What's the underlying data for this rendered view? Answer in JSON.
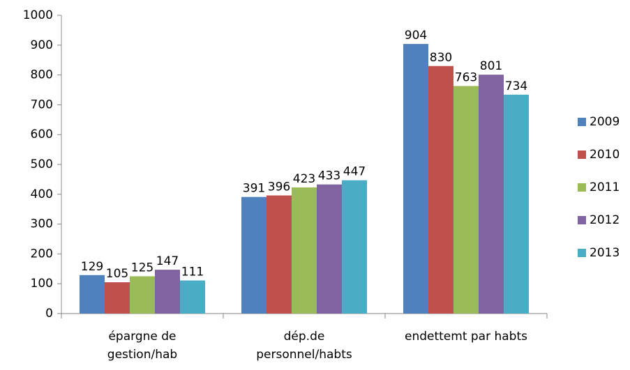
{
  "chart_data": {
    "type": "bar",
    "categories": [
      "épargne de gestion/hab",
      "dép.de personnel/habts",
      "endettemt par habts"
    ],
    "series": [
      {
        "name": "2009",
        "color": "#4f81bd",
        "values": [
          129,
          391,
          904
        ]
      },
      {
        "name": "2010",
        "color": "#c0504d",
        "values": [
          105,
          396,
          830
        ]
      },
      {
        "name": "2011",
        "color": "#9bbb59",
        "values": [
          125,
          423,
          763
        ]
      },
      {
        "name": "2012",
        "color": "#8064a2",
        "values": [
          147,
          433,
          801
        ]
      },
      {
        "name": "2013",
        "color": "#4bacc6",
        "values": [
          111,
          447,
          734
        ]
      }
    ],
    "ylim": [
      0,
      1000
    ],
    "yticks": [
      0,
      100,
      200,
      300,
      400,
      500,
      600,
      700,
      800,
      900,
      1000
    ],
    "grid": false,
    "legend": "right"
  }
}
